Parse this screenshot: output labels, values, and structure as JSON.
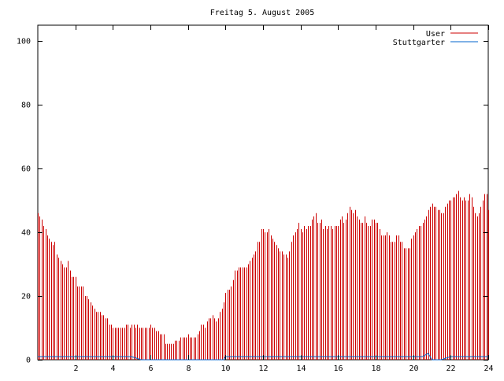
{
  "chart_data": {
    "type": "bar",
    "title": "Freitag 5. August 2005",
    "xlabel": "",
    "ylabel": "",
    "xlim": [
      0,
      24
    ],
    "ylim": [
      0,
      105
    ],
    "x_ticks": [
      2,
      4,
      6,
      8,
      10,
      12,
      14,
      16,
      18,
      20,
      22,
      24
    ],
    "y_ticks": [
      0,
      20,
      40,
      60,
      80,
      100
    ],
    "grid": false,
    "legend": "top-right",
    "series": [
      {
        "name": "User",
        "color": "#cc0000",
        "points": [
          [
            0.0,
            46
          ],
          [
            0.1,
            45
          ],
          [
            0.2,
            44
          ],
          [
            0.3,
            42
          ],
          [
            0.4,
            41
          ],
          [
            0.5,
            39
          ],
          [
            0.6,
            38
          ],
          [
            0.7,
            37
          ],
          [
            0.8,
            36
          ],
          [
            0.9,
            37
          ],
          [
            1.0,
            33
          ],
          [
            1.1,
            32
          ],
          [
            1.2,
            31
          ],
          [
            1.3,
            30
          ],
          [
            1.4,
            29
          ],
          [
            1.5,
            29
          ],
          [
            1.6,
            31
          ],
          [
            1.7,
            28
          ],
          [
            1.8,
            26
          ],
          [
            1.9,
            26
          ],
          [
            2.0,
            26
          ],
          [
            2.1,
            23
          ],
          [
            2.2,
            23
          ],
          [
            2.3,
            23
          ],
          [
            2.4,
            23
          ],
          [
            2.5,
            20
          ],
          [
            2.6,
            20
          ],
          [
            2.7,
            19
          ],
          [
            2.8,
            18
          ],
          [
            2.9,
            17
          ],
          [
            3.0,
            16
          ],
          [
            3.1,
            15
          ],
          [
            3.2,
            15
          ],
          [
            3.3,
            15
          ],
          [
            3.4,
            14
          ],
          [
            3.5,
            14
          ],
          [
            3.6,
            13
          ],
          [
            3.7,
            13
          ],
          [
            3.8,
            11
          ],
          [
            3.9,
            11
          ],
          [
            4.0,
            10
          ],
          [
            4.1,
            10
          ],
          [
            4.2,
            10
          ],
          [
            4.3,
            10
          ],
          [
            4.4,
            10
          ],
          [
            4.5,
            10
          ],
          [
            4.6,
            10
          ],
          [
            4.7,
            11
          ],
          [
            4.8,
            11
          ],
          [
            4.9,
            10
          ],
          [
            5.0,
            11
          ],
          [
            5.1,
            11
          ],
          [
            5.2,
            10
          ],
          [
            5.3,
            11
          ],
          [
            5.4,
            10
          ],
          [
            5.5,
            10
          ],
          [
            5.6,
            10
          ],
          [
            5.7,
            10
          ],
          [
            5.8,
            10
          ],
          [
            5.9,
            10
          ],
          [
            6.0,
            11
          ],
          [
            6.1,
            10
          ],
          [
            6.2,
            10
          ],
          [
            6.3,
            9
          ],
          [
            6.4,
            9
          ],
          [
            6.5,
            8
          ],
          [
            6.6,
            8
          ],
          [
            6.7,
            8
          ],
          [
            6.8,
            5
          ],
          [
            6.9,
            5
          ],
          [
            7.0,
            5
          ],
          [
            7.1,
            5
          ],
          [
            7.2,
            5
          ],
          [
            7.3,
            6
          ],
          [
            7.4,
            6
          ],
          [
            7.5,
            6
          ],
          [
            7.6,
            7
          ],
          [
            7.7,
            7
          ],
          [
            7.8,
            7
          ],
          [
            7.9,
            7
          ],
          [
            8.0,
            8
          ],
          [
            8.1,
            7
          ],
          [
            8.2,
            7
          ],
          [
            8.3,
            7
          ],
          [
            8.4,
            7
          ],
          [
            8.5,
            8
          ],
          [
            8.6,
            9
          ],
          [
            8.7,
            11
          ],
          [
            8.8,
            11
          ],
          [
            8.9,
            10
          ],
          [
            9.0,
            12
          ],
          [
            9.1,
            13
          ],
          [
            9.2,
            13
          ],
          [
            9.3,
            14
          ],
          [
            9.4,
            13
          ],
          [
            9.5,
            12
          ],
          [
            9.6,
            13
          ],
          [
            9.7,
            15
          ],
          [
            9.8,
            16
          ],
          [
            9.9,
            18
          ],
          [
            10.0,
            21
          ],
          [
            10.1,
            22
          ],
          [
            10.2,
            22
          ],
          [
            10.3,
            23
          ],
          [
            10.4,
            25
          ],
          [
            10.5,
            28
          ],
          [
            10.6,
            28
          ],
          [
            10.7,
            29
          ],
          [
            10.8,
            29
          ],
          [
            10.9,
            29
          ],
          [
            11.0,
            29
          ],
          [
            11.1,
            29
          ],
          [
            11.2,
            30
          ],
          [
            11.3,
            31
          ],
          [
            11.4,
            32
          ],
          [
            11.5,
            33
          ],
          [
            11.6,
            34
          ],
          [
            11.7,
            37
          ],
          [
            11.8,
            37
          ],
          [
            11.9,
            41
          ],
          [
            12.0,
            41
          ],
          [
            12.1,
            40
          ],
          [
            12.2,
            40
          ],
          [
            12.3,
            41
          ],
          [
            12.4,
            39
          ],
          [
            12.5,
            38
          ],
          [
            12.6,
            37
          ],
          [
            12.7,
            36
          ],
          [
            12.8,
            35
          ],
          [
            12.9,
            34
          ],
          [
            13.0,
            34
          ],
          [
            13.1,
            33
          ],
          [
            13.2,
            33
          ],
          [
            13.3,
            32
          ],
          [
            13.4,
            34
          ],
          [
            13.5,
            37
          ],
          [
            13.6,
            39
          ],
          [
            13.7,
            40
          ],
          [
            13.8,
            41
          ],
          [
            13.9,
            43
          ],
          [
            14.0,
            41
          ],
          [
            14.1,
            40
          ],
          [
            14.2,
            42
          ],
          [
            14.3,
            41
          ],
          [
            14.4,
            42
          ],
          [
            14.5,
            42
          ],
          [
            14.6,
            44
          ],
          [
            14.7,
            45
          ],
          [
            14.8,
            46
          ],
          [
            14.9,
            43
          ],
          [
            15.0,
            43
          ],
          [
            15.1,
            44
          ],
          [
            15.2,
            41
          ],
          [
            15.3,
            42
          ],
          [
            15.4,
            41
          ],
          [
            15.5,
            42
          ],
          [
            15.6,
            42
          ],
          [
            15.7,
            41
          ],
          [
            15.8,
            42
          ],
          [
            15.9,
            42
          ],
          [
            16.0,
            42
          ],
          [
            16.1,
            44
          ],
          [
            16.2,
            45
          ],
          [
            16.3,
            43
          ],
          [
            16.4,
            44
          ],
          [
            16.5,
            46
          ],
          [
            16.6,
            48
          ],
          [
            16.7,
            47
          ],
          [
            16.8,
            46
          ],
          [
            16.9,
            47
          ],
          [
            17.0,
            45
          ],
          [
            17.1,
            44
          ],
          [
            17.2,
            43
          ],
          [
            17.3,
            43
          ],
          [
            17.4,
            45
          ],
          [
            17.5,
            43
          ],
          [
            17.6,
            42
          ],
          [
            17.7,
            42
          ],
          [
            17.8,
            44
          ],
          [
            17.9,
            44
          ],
          [
            18.0,
            43
          ],
          [
            18.1,
            43
          ],
          [
            18.2,
            41
          ],
          [
            18.3,
            39
          ],
          [
            18.4,
            39
          ],
          [
            18.5,
            39
          ],
          [
            18.6,
            40
          ],
          [
            18.7,
            39
          ],
          [
            18.8,
            37
          ],
          [
            18.9,
            37
          ],
          [
            19.0,
            37
          ],
          [
            19.1,
            39
          ],
          [
            19.2,
            39
          ],
          [
            19.3,
            37
          ],
          [
            19.4,
            37
          ],
          [
            19.5,
            35
          ],
          [
            19.6,
            35
          ],
          [
            19.7,
            35
          ],
          [
            19.8,
            35
          ],
          [
            19.9,
            38
          ],
          [
            20.0,
            39
          ],
          [
            20.1,
            40
          ],
          [
            20.2,
            41
          ],
          [
            20.3,
            42
          ],
          [
            20.4,
            42
          ],
          [
            20.5,
            43
          ],
          [
            20.6,
            44
          ],
          [
            20.7,
            45
          ],
          [
            20.8,
            47
          ],
          [
            20.9,
            48
          ],
          [
            21.0,
            49
          ],
          [
            21.1,
            48
          ],
          [
            21.2,
            48
          ],
          [
            21.3,
            47
          ],
          [
            21.4,
            47
          ],
          [
            21.5,
            46
          ],
          [
            21.6,
            46
          ],
          [
            21.7,
            48
          ],
          [
            21.8,
            49
          ],
          [
            21.9,
            50
          ],
          [
            22.0,
            50
          ],
          [
            22.1,
            51
          ],
          [
            22.2,
            51
          ],
          [
            22.3,
            52
          ],
          [
            22.4,
            53
          ],
          [
            22.5,
            51
          ],
          [
            22.6,
            50
          ],
          [
            22.7,
            51
          ],
          [
            22.8,
            50
          ],
          [
            22.9,
            50
          ],
          [
            23.0,
            52
          ],
          [
            23.1,
            51
          ],
          [
            23.2,
            48
          ],
          [
            23.3,
            46
          ],
          [
            23.4,
            45
          ],
          [
            23.5,
            46
          ],
          [
            23.6,
            48
          ],
          [
            23.7,
            50
          ],
          [
            23.8,
            52
          ],
          [
            23.9,
            52
          ],
          [
            24.0,
            47
          ]
        ]
      },
      {
        "name": "Stuttgarter",
        "color": "#0066cc",
        "points": [
          [
            0.0,
            1
          ],
          [
            0.5,
            1
          ],
          [
            1.0,
            1
          ],
          [
            1.5,
            1
          ],
          [
            2.0,
            1
          ],
          [
            2.5,
            1
          ],
          [
            3.0,
            1
          ],
          [
            3.5,
            1
          ],
          [
            4.0,
            1
          ],
          [
            4.5,
            1
          ],
          [
            5.0,
            1
          ],
          [
            5.5,
            0
          ],
          [
            6.0,
            0
          ],
          [
            6.5,
            0
          ],
          [
            7.0,
            0
          ],
          [
            7.5,
            0
          ],
          [
            8.0,
            0
          ],
          [
            8.5,
            0
          ],
          [
            9.0,
            0
          ],
          [
            9.5,
            0
          ],
          [
            9.9,
            0
          ],
          [
            10.0,
            1
          ],
          [
            10.5,
            1
          ],
          [
            11.0,
            1
          ],
          [
            11.5,
            1
          ],
          [
            12.0,
            1
          ],
          [
            12.5,
            1
          ],
          [
            13.0,
            1
          ],
          [
            13.5,
            1
          ],
          [
            14.0,
            1
          ],
          [
            14.5,
            1
          ],
          [
            15.0,
            1
          ],
          [
            15.5,
            1
          ],
          [
            16.0,
            1
          ],
          [
            16.5,
            1
          ],
          [
            17.0,
            1
          ],
          [
            17.5,
            1
          ],
          [
            18.0,
            1
          ],
          [
            18.5,
            1
          ],
          [
            19.0,
            1
          ],
          [
            19.5,
            1
          ],
          [
            20.0,
            1
          ],
          [
            20.5,
            1
          ],
          [
            20.8,
            2
          ],
          [
            21.0,
            0
          ],
          [
            21.5,
            0
          ],
          [
            22.0,
            1
          ],
          [
            22.5,
            1
          ],
          [
            23.0,
            1
          ],
          [
            23.5,
            1
          ],
          [
            24.0,
            1
          ]
        ]
      }
    ]
  }
}
